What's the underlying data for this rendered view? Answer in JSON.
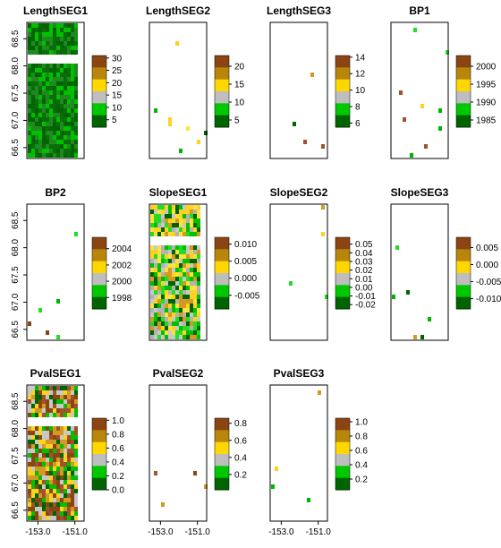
{
  "chart_data": [
    {
      "type": "heatmap",
      "title": "LengthSEG1",
      "legend_ticks": [
        "30",
        "25",
        "20",
        "15",
        "10",
        "5"
      ],
      "legend_range": [
        2,
        31
      ],
      "coverage": "full",
      "colors": [
        "#006400",
        "#0a6d0a",
        "#1f8a1f",
        "#00c000"
      ]
    },
    {
      "type": "heatmap",
      "title": "LengthSEG2",
      "legend_ticks": [
        "20",
        "15",
        "10",
        "5"
      ],
      "legend_range": [
        3,
        23
      ],
      "coverage": "sparse",
      "colors": [
        "#a0522d",
        "#d29a22",
        "#ffd21f",
        "#ffe63d",
        "#00b400",
        "#006400"
      ]
    },
    {
      "type": "heatmap",
      "title": "LengthSEG3",
      "legend_ticks": [
        "14",
        "12",
        "10",
        "8",
        "6"
      ],
      "legend_range": [
        5.5,
        14.2
      ],
      "coverage": "sparse",
      "colors": [
        "#a0522d",
        "#d29a22",
        "#ffd21f",
        "#006400"
      ]
    },
    {
      "type": "heatmap",
      "title": "BP1",
      "legend_ticks": [
        "2000",
        "1995",
        "1990",
        "1985"
      ],
      "legend_range": [
        1983,
        2003
      ],
      "coverage": "sparse",
      "colors": [
        "#a0522d",
        "#ffd21f",
        "#00b400",
        "#22dd22",
        "#006400"
      ]
    },
    {
      "type": "heatmap",
      "title": "BP2",
      "legend_ticks": [
        "2004",
        "2002",
        "2000",
        "1998"
      ],
      "legend_range": [
        1996.6,
        2005.4
      ],
      "coverage": "sparse",
      "colors": [
        "#22dd22",
        "#00b400",
        "#ffd21f",
        "#8b4513"
      ]
    },
    {
      "type": "heatmap",
      "title": "SlopeSEG1",
      "legend_ticks": [
        "0.010",
        "0.005",
        "0.000",
        "-0.005"
      ],
      "legend_range": [
        -0.009,
        0.012
      ],
      "coverage": "full",
      "colors": [
        "#b2b2b2",
        "#c8c8c8",
        "#ffe13c",
        "#ffd21f",
        "#d29a22",
        "#00c000",
        "#006400",
        "#22dd22"
      ]
    },
    {
      "type": "heatmap",
      "title": "SlopeSEG2",
      "legend_ticks": [
        "0.05",
        "0.04",
        "0.03",
        "0.02",
        "0.01",
        "0.00",
        "-0.01",
        "-0.02"
      ],
      "legend_range": [
        -0.025,
        0.058
      ],
      "coverage": "sparse",
      "colors": [
        "#a0522d",
        "#ffd21f",
        "#d29a22",
        "#c8c8c8",
        "#006400",
        "#22dd22"
      ]
    },
    {
      "type": "heatmap",
      "title": "SlopeSEG3",
      "legend_ticks": [
        "0.005",
        "0.000",
        "-0.005",
        "-0.010"
      ],
      "legend_range": [
        -0.013,
        0.008
      ],
      "coverage": "sparse",
      "colors": [
        "#22dd22",
        "#00b400",
        "#006400",
        "#d29a22"
      ]
    },
    {
      "type": "heatmap",
      "title": "PvalSEG1",
      "legend_ticks": [
        "1.0",
        "0.8",
        "0.6",
        "0.4",
        "0.2",
        "0.0"
      ],
      "legend_range": [
        0,
        1.03
      ],
      "coverage": "full",
      "colors": [
        "#8b4513",
        "#a0522d",
        "#d29a22",
        "#ffd21f",
        "#c8c8c8",
        "#00c000",
        "#006400"
      ]
    },
    {
      "type": "heatmap",
      "title": "PvalSEG2",
      "legend_ticks": [
        "0.8",
        "0.6",
        "0.4",
        "0.2"
      ],
      "legend_range": [
        0.02,
        0.86
      ],
      "coverage": "sparse",
      "colors": [
        "#8b4513",
        "#a0522d",
        "#d29a22",
        "#00b400"
      ]
    },
    {
      "type": "heatmap",
      "title": "PvalSEG3",
      "legend_ticks": [
        "1.0",
        "0.8",
        "0.6",
        "0.4",
        "0.2"
      ],
      "legend_range": [
        0.05,
        1.05
      ],
      "coverage": "sparse",
      "colors": [
        "#8b4513",
        "#d29a22",
        "#ffd21f",
        "#006400",
        "#00b400"
      ]
    }
  ],
  "axes": {
    "y_ticks": [
      "66.5",
      "67.0",
      "67.5",
      "68.0",
      "68.5"
    ],
    "x_ticks": [
      "-153.0",
      "-151.0"
    ],
    "ylim": [
      66.3,
      68.8
    ],
    "xlim": [
      -153.6,
      -150.5
    ]
  },
  "colormap": [
    "#8b4513",
    "#b8860b",
    "#ffd700",
    "#bebebe",
    "#00c800",
    "#006400"
  ]
}
